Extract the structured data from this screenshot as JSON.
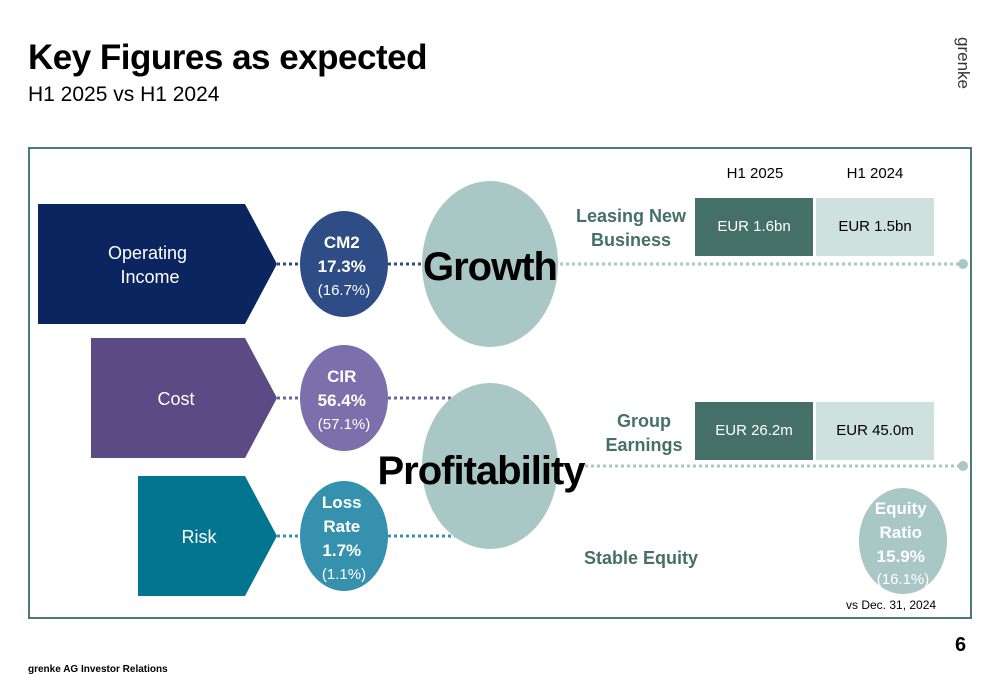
{
  "title": "Key Figures as expected",
  "subtitle": "H1 2025 vs H1 2024",
  "logo_text": "grenke",
  "drivers": [
    {
      "label_lines": [
        "Operating",
        "Income"
      ],
      "color": "#0b2560"
    },
    {
      "label_lines": [
        "Cost"
      ],
      "color": "#5c4a85"
    },
    {
      "label_lines": [
        "Risk"
      ],
      "color": "#027591"
    }
  ],
  "kpis": [
    {
      "lines": [
        "CM2",
        "17.3%"
      ],
      "prior": "(16.7%)",
      "color": "#2e4c85"
    },
    {
      "lines": [
        "CIR",
        "56.4%"
      ],
      "prior": "(57.1%)",
      "color": "#7b70ab"
    },
    {
      "lines": [
        "Loss",
        "Rate",
        "1.7%"
      ],
      "prior": "(1.1%)",
      "color": "#3591ae"
    }
  ],
  "themes": {
    "growth": "Growth",
    "profitability": "Profitability",
    "color": "#a9c7c5"
  },
  "columns": {
    "current": "H1 2025",
    "prior": "H1 2024"
  },
  "rows": [
    {
      "label_lines": [
        "Leasing New",
        "Business"
      ],
      "current": "EUR 1.6bn",
      "prior": "EUR 1.5bn"
    },
    {
      "label_lines": [
        "Group",
        "Earnings"
      ],
      "current": "EUR 26.2m",
      "prior": "EUR 45.0m"
    }
  ],
  "stable_equity": {
    "label": "Stable Equity",
    "lines": [
      "Equity",
      "Ratio",
      "15.9%"
    ],
    "prior": "(16.1%)",
    "note": "vs Dec. 31, 2024",
    "color": "#a9c7c5"
  },
  "footer": "grenke AG Investor Relations",
  "page_number": "6"
}
